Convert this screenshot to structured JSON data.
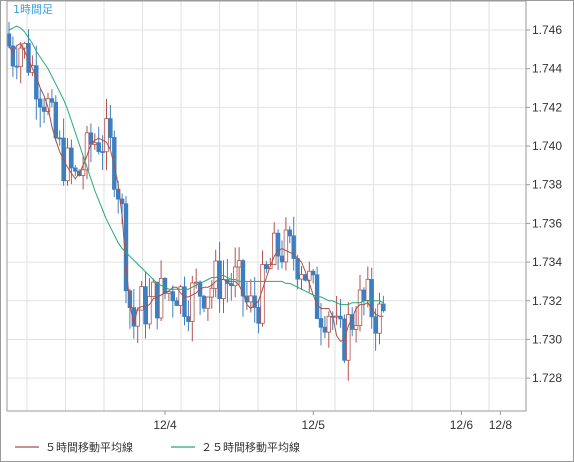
{
  "chart_data": {
    "type": "candlestick",
    "period_label": "1時間足",
    "y_ticks": [
      "1.746",
      "1.744",
      "1.742",
      "1.740",
      "1.738",
      "1.736",
      "1.734",
      "1.732",
      "1.730",
      "1.728"
    ],
    "ylim": [
      1.7263,
      1.7475
    ],
    "x_ticks": [
      {
        "label": "12/4",
        "index": 40
      },
      {
        "label": "12/5",
        "index": 78
      },
      {
        "label": "12/6",
        "index": 116
      },
      {
        "label": "12/8",
        "index": 126
      }
    ],
    "grid": true,
    "legend_position": "bottom",
    "colors": {
      "up": "#b5524a",
      "down": "#3f7fbf",
      "ma5": "#a8504a",
      "ma25": "#2aa67a",
      "grid": "#e2e2e2",
      "axis": "#9a9a9a"
    },
    "series": [
      {
        "name": "５時間移動平均線",
        "color": "#a8504a",
        "values": [
          1.7452,
          1.7448,
          1.7452,
          1.7453,
          1.7449,
          1.7445,
          1.744,
          1.7436,
          1.743,
          1.7426,
          1.742,
          1.741,
          1.7403,
          1.7397,
          1.7393,
          1.7389,
          1.7386,
          1.7383,
          1.7386,
          1.739,
          1.7395,
          1.7401,
          1.7403,
          1.7404,
          1.7403,
          1.7402,
          1.7398,
          1.739,
          1.738,
          1.7364,
          1.7338,
          1.7318,
          1.7308,
          1.7316,
          1.7317,
          1.7317,
          1.7318,
          1.7321,
          1.7322,
          1.7323,
          1.7324,
          1.7325,
          1.7327,
          1.7327,
          1.7324,
          1.7322,
          1.7322,
          1.7323,
          1.7324,
          1.7326,
          1.7327,
          1.7327,
          1.7328,
          1.733,
          1.7331,
          1.7331,
          1.733,
          1.733,
          1.733,
          1.7328,
          1.7324,
          1.7318,
          1.7316,
          1.7318,
          1.732,
          1.7326,
          1.7332,
          1.7338,
          1.7343,
          1.7346,
          1.7347,
          1.7346,
          1.7345,
          1.7344,
          1.7342,
          1.734,
          1.7335,
          1.7329,
          1.7323,
          1.7318,
          1.7316,
          1.7316,
          1.7316,
          1.7312,
          1.7302,
          1.7299,
          1.73,
          1.7307,
          1.7311,
          1.7316,
          1.7318,
          1.7318,
          1.7319,
          1.7316,
          1.7313,
          1.7312,
          1.7312
        ]
      },
      {
        "name": "２５時間移動平均線",
        "color": "#2aa67a",
        "values": [
          1.746,
          1.7461,
          1.7462,
          1.7461,
          1.7459,
          1.7456,
          1.7453,
          1.7449,
          1.7446,
          1.7443,
          1.744,
          1.7436,
          1.7432,
          1.7428,
          1.7424,
          1.7419,
          1.7413,
          1.7407,
          1.7401,
          1.7395,
          1.7389,
          1.7383,
          1.7377,
          1.7372,
          1.7367,
          1.7362,
          1.7358,
          1.7354,
          1.735,
          1.7347,
          1.7345,
          1.7343,
          1.7341,
          1.7339,
          1.7337,
          1.7335,
          1.7333,
          1.7331,
          1.7329,
          1.7328,
          1.7327,
          1.7326,
          1.7326,
          1.7326,
          1.7326,
          1.7326,
          1.7326,
          1.7327,
          1.7328,
          1.7329,
          1.733,
          1.7331,
          1.7332,
          1.7332,
          1.7333,
          1.7333,
          1.7332,
          1.7331,
          1.7331,
          1.733,
          1.733,
          1.733,
          1.733,
          1.733,
          1.733,
          1.733,
          1.733,
          1.733,
          1.733,
          1.733,
          1.733,
          1.7329,
          1.7329,
          1.7328,
          1.7327,
          1.7326,
          1.7325,
          1.7324,
          1.7323,
          1.7322,
          1.7322,
          1.7321,
          1.732,
          1.732,
          1.7319,
          1.7318,
          1.7318,
          1.7318,
          1.7319,
          1.7319,
          1.7319,
          1.732,
          1.732,
          1.732,
          1.732,
          1.732,
          1.7319
        ]
      }
    ]
  }
}
